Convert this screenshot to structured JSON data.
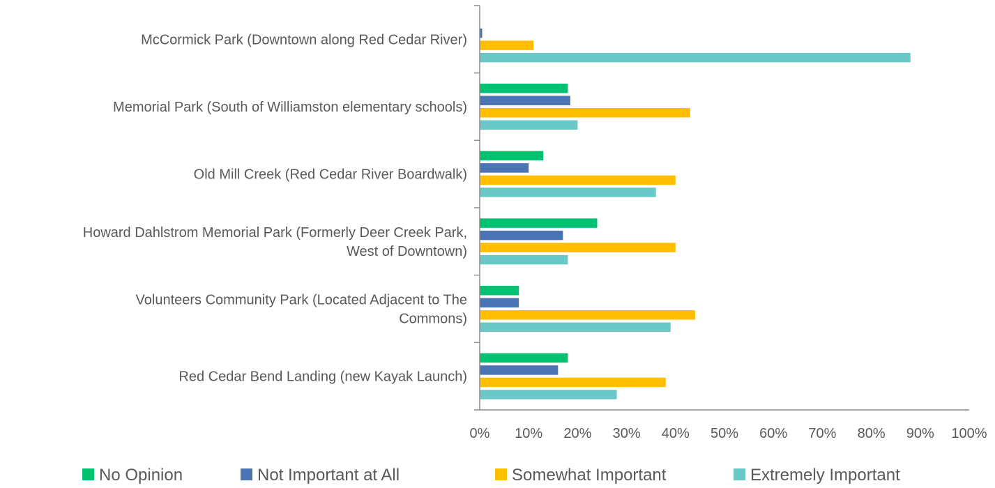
{
  "chart_data": {
    "type": "bar",
    "orientation": "horizontal",
    "categories": [
      [
        "McCormick Park (Downtown along Red Cedar River)"
      ],
      [
        "Memorial Park (South of Williamston elementary schools)"
      ],
      [
        "Old Mill Creek (Red Cedar River Boardwalk)"
      ],
      [
        "Howard Dahlstrom Memorial Park (Formerly Deer Creek Park,",
        "West of Downtown)"
      ],
      [
        "Volunteers Community Park (Located Adjacent to The",
        "Commons)"
      ],
      [
        "Red Cedar Bend Landing (new Kayak Launch)"
      ]
    ],
    "series": [
      {
        "name": "No Opinion",
        "color": "#00c271",
        "values": [
          0,
          18,
          13,
          24,
          8,
          18
        ]
      },
      {
        "name": "Not Important at All",
        "color": "#4a74b3",
        "values": [
          0.5,
          18.5,
          10,
          17,
          8,
          16
        ]
      },
      {
        "name": "Somewhat Important",
        "color": "#ffbe00",
        "values": [
          11,
          43,
          40,
          40,
          44,
          38
        ]
      },
      {
        "name": "Extremely Important",
        "color": "#6bc8c9",
        "values": [
          88,
          20,
          36,
          18,
          39,
          28
        ]
      }
    ],
    "xlim": [
      0,
      100
    ],
    "xticks": [
      0,
      10,
      20,
      30,
      40,
      50,
      60,
      70,
      80,
      90,
      100
    ],
    "tick_suffix": "%",
    "grid": false,
    "legend_position": "bottom",
    "title": "",
    "xlabel": "",
    "ylabel": ""
  }
}
